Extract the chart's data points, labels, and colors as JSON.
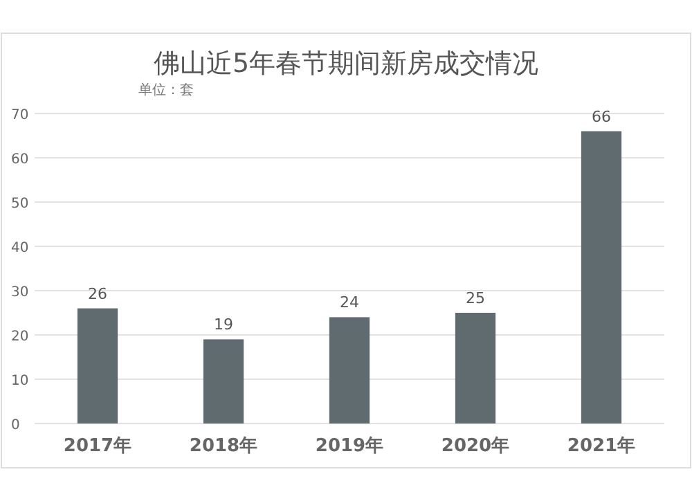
{
  "chart_data": {
    "type": "bar",
    "title": "佛山近5年春节期间新房成交情况",
    "subtitle": "单位：套",
    "categories": [
      "2017年",
      "2018年",
      "2019年",
      "2020年",
      "2021年"
    ],
    "values": [
      26,
      19,
      24,
      25,
      66
    ],
    "color": "#5f6b6e",
    "ylim": [
      0,
      70
    ],
    "yticks": [
      0,
      10,
      20,
      30,
      40,
      50,
      60,
      70
    ],
    "grid": "y",
    "data_labels": true
  }
}
